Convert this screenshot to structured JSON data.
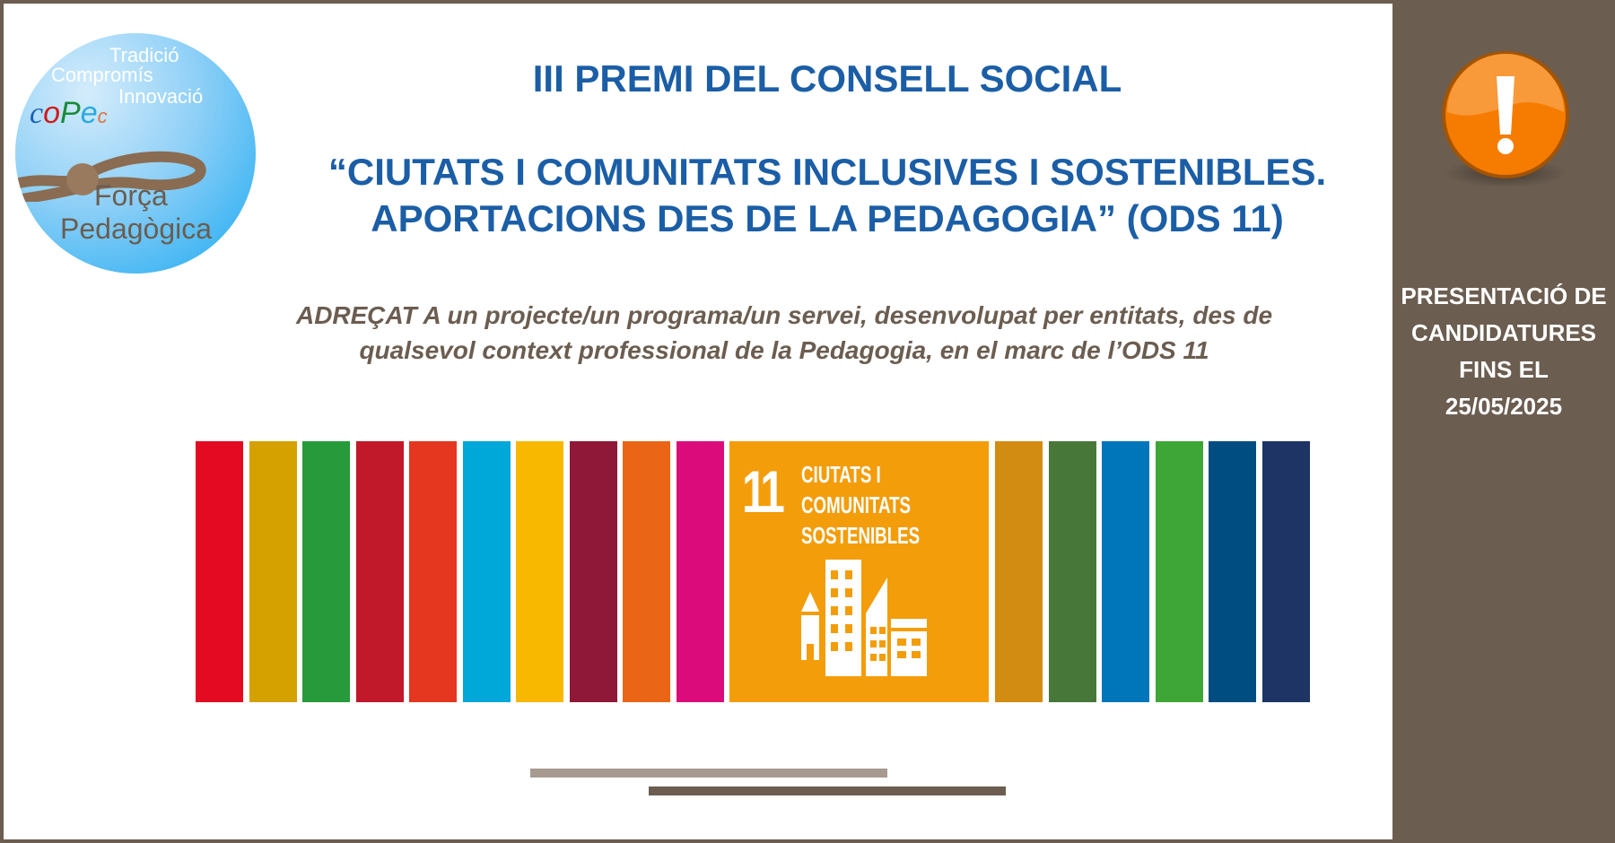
{
  "logo": {
    "lines_top": [
      "Tradició",
      "Compromís",
      "Innovació"
    ],
    "brand": "coPec",
    "lines_bottom": [
      "Força",
      "Pedagògica"
    ]
  },
  "header": {
    "title": "III PREMI DEL CONSELL SOCIAL",
    "subtitle_line1": "“CIUTATS I COMUNITATS INCLUSIVES I SOSTENIBLES.",
    "subtitle_line2": "APORTACIONS DES DE LA PEDAGOGIA” (ODS 11)"
  },
  "description": {
    "line1": "ADREÇAT A un projecte/un programa/un servei, desenvolupat per entitats, des de",
    "line2": "qualsevol context professional de la Pedagogia, en el marc de l’ODS 11"
  },
  "sdg_banner": {
    "bars_left": [
      "#e30a22",
      "#d4a100",
      "#279a3b",
      "#c1182a",
      "#e5361f",
      "#00a7d9",
      "#f9b800",
      "#8f1838",
      "#ea6515",
      "#dc0b7c"
    ],
    "goal": {
      "number": "11",
      "lines": [
        "CIUTATS I",
        "COMUNITATS",
        "SOSTENIBLES"
      ],
      "color": "#f39d0b"
    },
    "bars_right": [
      "#d38c12",
      "#48773a",
      "#0076ba",
      "#3ea636",
      "#004d82",
      "#1e3464"
    ]
  },
  "sidebar": {
    "icon": "warning-icon",
    "lines": [
      "PRESENTACIÓ DE",
      "CANDIDATURES",
      "FINS EL",
      "25/05/2025"
    ]
  },
  "colors": {
    "frame": "#6b5d50",
    "title": "#1b5ea6",
    "warning": "#f57c00"
  }
}
